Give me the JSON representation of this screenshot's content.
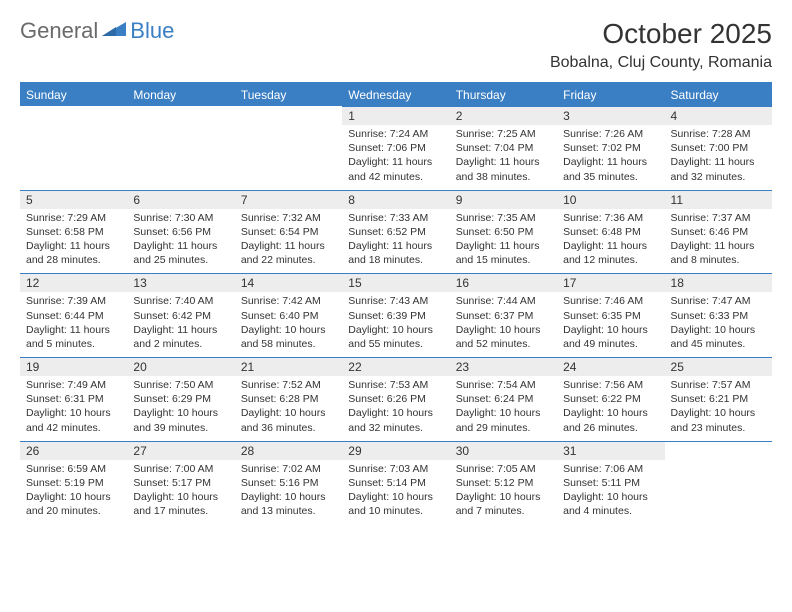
{
  "logo": {
    "text1": "General",
    "text2": "Blue"
  },
  "title": "October 2025",
  "location": "Bobalna, Cluj County, Romania",
  "colors": {
    "accent": "#3a7fc4",
    "headerBg": "#3a7fc4",
    "numBg": "#ededed",
    "text": "#333333"
  },
  "dayNames": [
    "Sunday",
    "Monday",
    "Tuesday",
    "Wednesday",
    "Thursday",
    "Friday",
    "Saturday"
  ],
  "weeks": [
    [
      null,
      null,
      null,
      {
        "n": "1",
        "sunrise": "7:24 AM",
        "sunset": "7:06 PM",
        "dlh": "11",
        "dlm": "42"
      },
      {
        "n": "2",
        "sunrise": "7:25 AM",
        "sunset": "7:04 PM",
        "dlh": "11",
        "dlm": "38"
      },
      {
        "n": "3",
        "sunrise": "7:26 AM",
        "sunset": "7:02 PM",
        "dlh": "11",
        "dlm": "35"
      },
      {
        "n": "4",
        "sunrise": "7:28 AM",
        "sunset": "7:00 PM",
        "dlh": "11",
        "dlm": "32"
      }
    ],
    [
      {
        "n": "5",
        "sunrise": "7:29 AM",
        "sunset": "6:58 PM",
        "dlh": "11",
        "dlm": "28"
      },
      {
        "n": "6",
        "sunrise": "7:30 AM",
        "sunset": "6:56 PM",
        "dlh": "11",
        "dlm": "25"
      },
      {
        "n": "7",
        "sunrise": "7:32 AM",
        "sunset": "6:54 PM",
        "dlh": "11",
        "dlm": "22"
      },
      {
        "n": "8",
        "sunrise": "7:33 AM",
        "sunset": "6:52 PM",
        "dlh": "11",
        "dlm": "18"
      },
      {
        "n": "9",
        "sunrise": "7:35 AM",
        "sunset": "6:50 PM",
        "dlh": "11",
        "dlm": "15"
      },
      {
        "n": "10",
        "sunrise": "7:36 AM",
        "sunset": "6:48 PM",
        "dlh": "11",
        "dlm": "12"
      },
      {
        "n": "11",
        "sunrise": "7:37 AM",
        "sunset": "6:46 PM",
        "dlh": "11",
        "dlm": "8"
      }
    ],
    [
      {
        "n": "12",
        "sunrise": "7:39 AM",
        "sunset": "6:44 PM",
        "dlh": "11",
        "dlm": "5"
      },
      {
        "n": "13",
        "sunrise": "7:40 AM",
        "sunset": "6:42 PM",
        "dlh": "11",
        "dlm": "2"
      },
      {
        "n": "14",
        "sunrise": "7:42 AM",
        "sunset": "6:40 PM",
        "dlh": "10",
        "dlm": "58"
      },
      {
        "n": "15",
        "sunrise": "7:43 AM",
        "sunset": "6:39 PM",
        "dlh": "10",
        "dlm": "55"
      },
      {
        "n": "16",
        "sunrise": "7:44 AM",
        "sunset": "6:37 PM",
        "dlh": "10",
        "dlm": "52"
      },
      {
        "n": "17",
        "sunrise": "7:46 AM",
        "sunset": "6:35 PM",
        "dlh": "10",
        "dlm": "49"
      },
      {
        "n": "18",
        "sunrise": "7:47 AM",
        "sunset": "6:33 PM",
        "dlh": "10",
        "dlm": "45"
      }
    ],
    [
      {
        "n": "19",
        "sunrise": "7:49 AM",
        "sunset": "6:31 PM",
        "dlh": "10",
        "dlm": "42"
      },
      {
        "n": "20",
        "sunrise": "7:50 AM",
        "sunset": "6:29 PM",
        "dlh": "10",
        "dlm": "39"
      },
      {
        "n": "21",
        "sunrise": "7:52 AM",
        "sunset": "6:28 PM",
        "dlh": "10",
        "dlm": "36"
      },
      {
        "n": "22",
        "sunrise": "7:53 AM",
        "sunset": "6:26 PM",
        "dlh": "10",
        "dlm": "32"
      },
      {
        "n": "23",
        "sunrise": "7:54 AM",
        "sunset": "6:24 PM",
        "dlh": "10",
        "dlm": "29"
      },
      {
        "n": "24",
        "sunrise": "7:56 AM",
        "sunset": "6:22 PM",
        "dlh": "10",
        "dlm": "26"
      },
      {
        "n": "25",
        "sunrise": "7:57 AM",
        "sunset": "6:21 PM",
        "dlh": "10",
        "dlm": "23"
      }
    ],
    [
      {
        "n": "26",
        "sunrise": "6:59 AM",
        "sunset": "5:19 PM",
        "dlh": "10",
        "dlm": "20"
      },
      {
        "n": "27",
        "sunrise": "7:00 AM",
        "sunset": "5:17 PM",
        "dlh": "10",
        "dlm": "17"
      },
      {
        "n": "28",
        "sunrise": "7:02 AM",
        "sunset": "5:16 PM",
        "dlh": "10",
        "dlm": "13"
      },
      {
        "n": "29",
        "sunrise": "7:03 AM",
        "sunset": "5:14 PM",
        "dlh": "10",
        "dlm": "10"
      },
      {
        "n": "30",
        "sunrise": "7:05 AM",
        "sunset": "5:12 PM",
        "dlh": "10",
        "dlm": "7"
      },
      {
        "n": "31",
        "sunrise": "7:06 AM",
        "sunset": "5:11 PM",
        "dlh": "10",
        "dlm": "4"
      },
      null
    ]
  ],
  "labels": {
    "sunrise": "Sunrise:",
    "sunset": "Sunset:",
    "daylight1": "Daylight:",
    "hours": "hours",
    "and": "and",
    "minutes": "minutes."
  }
}
